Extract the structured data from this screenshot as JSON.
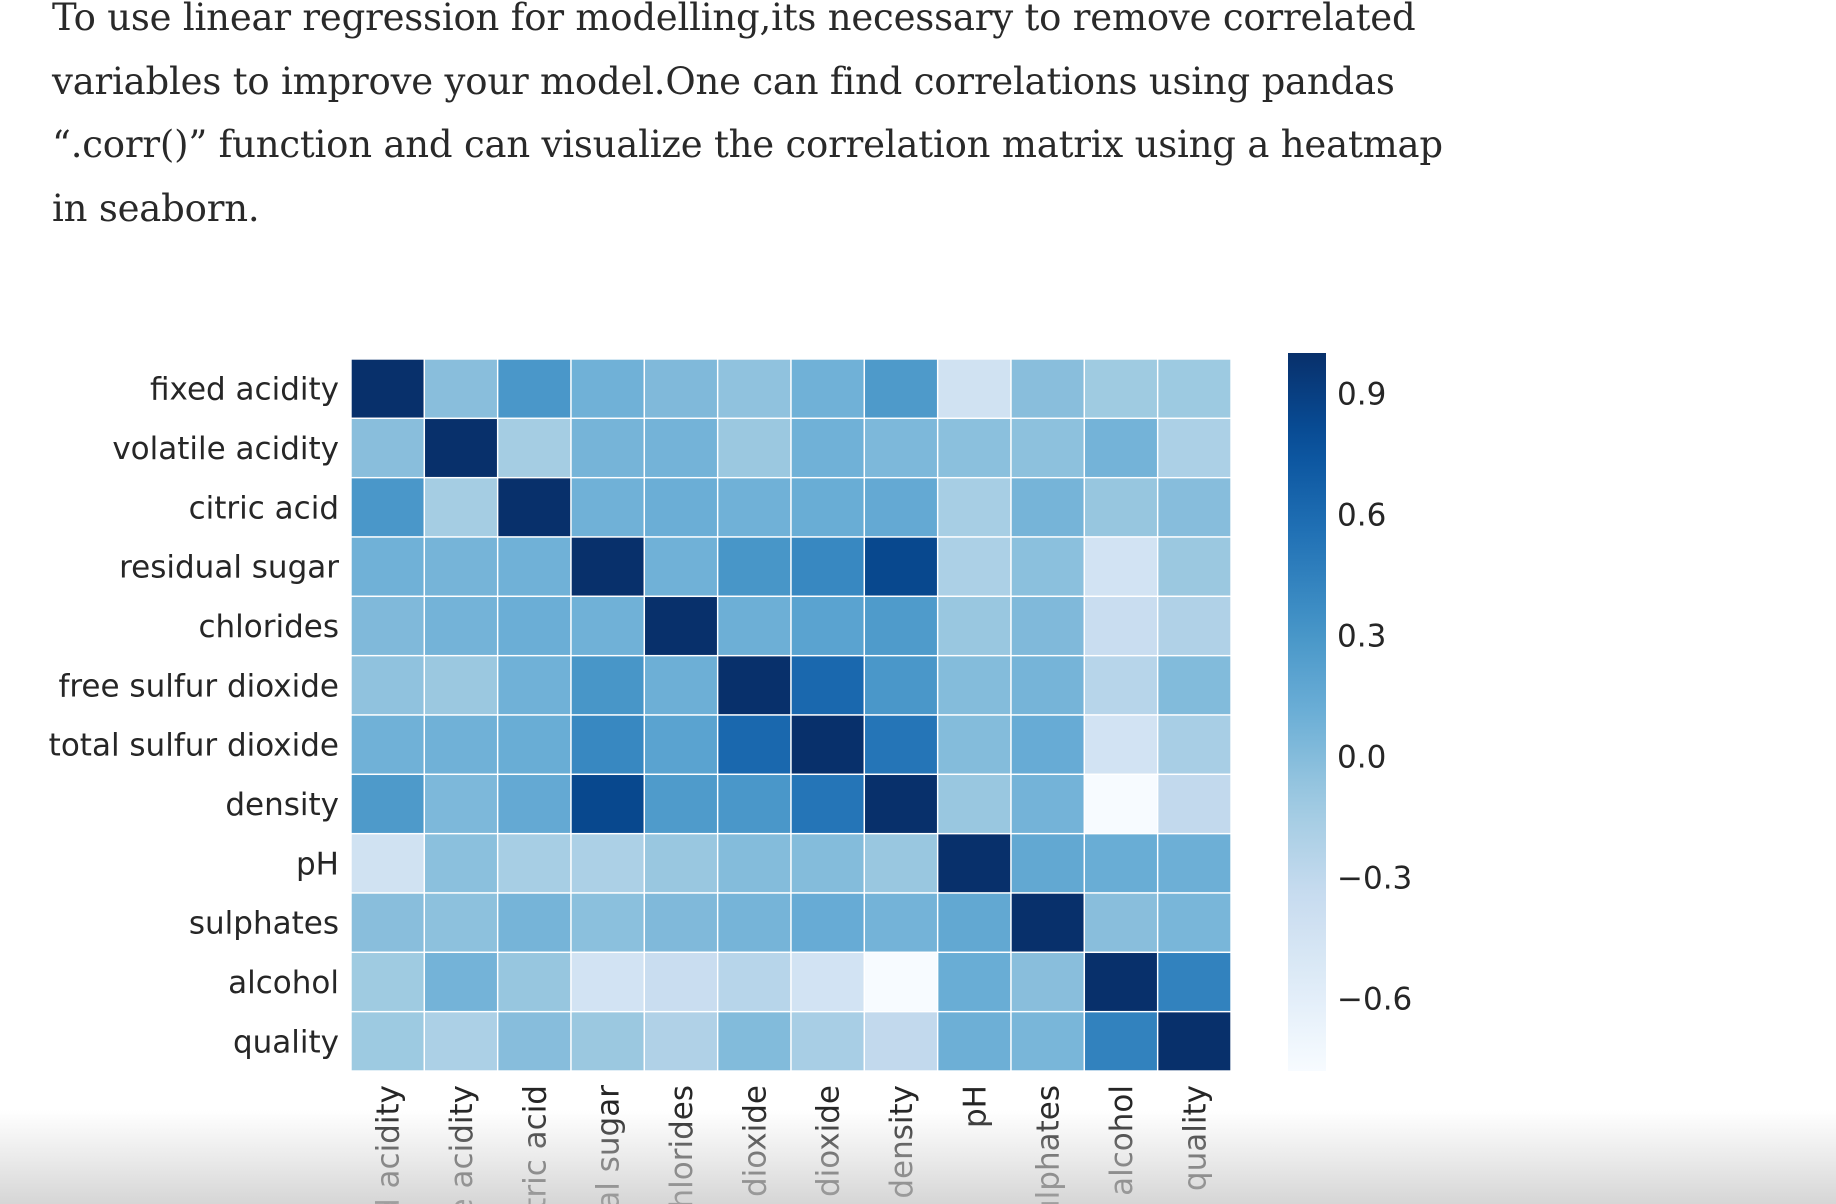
{
  "article": {
    "paragraph": "To use linear regression for modelling,its necessary to remove correlated variables to improve your model.One can find correlations using pandas “.corr()” function and can visualize the correlation matrix using a heatmap in seaborn."
  },
  "chart_data": {
    "type": "heatmap",
    "title": "",
    "xlabel": "",
    "ylabel": "",
    "rows": [
      "fixed acidity",
      "volatile acidity",
      "citric acid",
      "residual sugar",
      "chlorides",
      "free sulfur dioxide",
      "total sulfur dioxide",
      "density",
      "pH",
      "sulphates",
      "alcohol",
      "quality"
    ],
    "columns": [
      "ed acidity",
      "le acidity",
      "citric acid",
      "ual sugar",
      "chlorides",
      "r dioxide",
      "r dioxide",
      "density",
      "pH",
      "sulphates",
      "alcohol",
      "quality"
    ],
    "values": [
      [
        1.0,
        -0.02,
        0.29,
        0.09,
        0.02,
        -0.05,
        0.09,
        0.27,
        -0.43,
        -0.02,
        -0.12,
        -0.11
      ],
      [
        -0.02,
        1.0,
        -0.15,
        0.06,
        0.07,
        -0.1,
        0.09,
        0.03,
        -0.03,
        -0.04,
        0.07,
        -0.19
      ],
      [
        0.29,
        -0.15,
        1.0,
        0.09,
        0.11,
        0.09,
        0.12,
        0.15,
        -0.16,
        0.06,
        -0.08,
        -0.01
      ],
      [
        0.09,
        0.06,
        0.09,
        1.0,
        0.09,
        0.3,
        0.4,
        0.84,
        -0.19,
        -0.03,
        -0.45,
        -0.1
      ],
      [
        0.02,
        0.07,
        0.11,
        0.09,
        1.0,
        0.1,
        0.2,
        0.26,
        -0.09,
        0.02,
        -0.36,
        -0.21
      ],
      [
        -0.05,
        -0.1,
        0.09,
        0.3,
        0.1,
        1.0,
        0.62,
        0.29,
        0.0,
        0.06,
        -0.25,
        0.01
      ],
      [
        0.09,
        0.09,
        0.12,
        0.4,
        0.2,
        0.62,
        1.0,
        0.53,
        0.0,
        0.13,
        -0.45,
        -0.17
      ],
      [
        0.27,
        0.03,
        0.15,
        0.84,
        0.26,
        0.29,
        0.53,
        1.0,
        -0.09,
        0.07,
        -0.78,
        -0.31
      ],
      [
        -0.43,
        -0.03,
        -0.16,
        -0.19,
        -0.09,
        0.0,
        0.0,
        -0.09,
        1.0,
        0.16,
        0.12,
        0.1
      ],
      [
        -0.02,
        -0.04,
        0.06,
        -0.03,
        0.02,
        0.06,
        0.13,
        0.07,
        0.16,
        1.0,
        -0.02,
        0.05
      ],
      [
        -0.12,
        0.07,
        -0.08,
        -0.45,
        -0.36,
        -0.25,
        -0.45,
        -0.78,
        0.12,
        -0.02,
        1.0,
        0.44
      ],
      [
        -0.11,
        -0.19,
        -0.01,
        -0.1,
        -0.21,
        0.01,
        -0.17,
        -0.31,
        0.1,
        0.05,
        0.44,
        1.0
      ]
    ],
    "colormap": "Blues",
    "colorbar": {
      "vmin": -0.78,
      "vmax": 1.0,
      "ticks": [
        0.9,
        0.6,
        0.3,
        0.0,
        -0.3,
        -0.6
      ],
      "tick_labels": [
        "0.9",
        "0.6",
        "0.3",
        "0.0",
        "−0.3",
        "−0.6"
      ]
    },
    "colors": {
      "low": "#f7fbff",
      "high": "#08306b",
      "grid_line": "#ffffff"
    }
  }
}
